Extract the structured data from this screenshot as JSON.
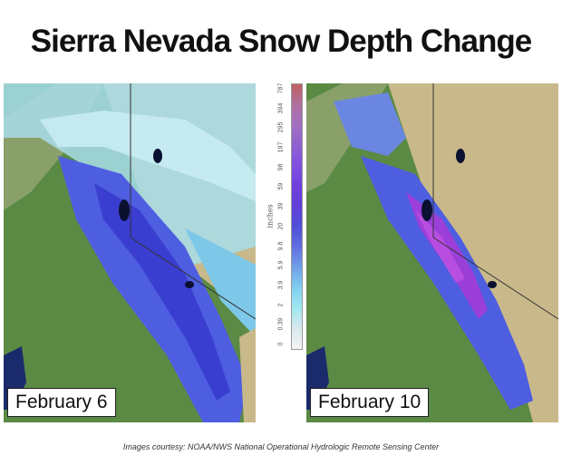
{
  "title": "Sierra Nevada Snow Depth Change",
  "maps": [
    {
      "date": "February 6"
    },
    {
      "date": "February 10"
    }
  ],
  "legend": {
    "unit": "inches",
    "ticks": [
      "787",
      "394",
      "295",
      "197",
      "98",
      "59",
      "39",
      "20",
      "9.8",
      "5.9",
      "3.9",
      "2",
      "0.39",
      "0"
    ],
    "colors": [
      "#c06060",
      "#b070a0",
      "#a070c0",
      "#9060d0",
      "#8050e0",
      "#7040e0",
      "#6040d8",
      "#5050d8",
      "#6070e0",
      "#70a0e8",
      "#80d0f0",
      "#a0e8f0",
      "#d8e8ec",
      "#f4f4f4"
    ]
  },
  "credit": "Images courtesy: NOAA/NWS National Operational Hydrologic Remote Sensing Center"
}
